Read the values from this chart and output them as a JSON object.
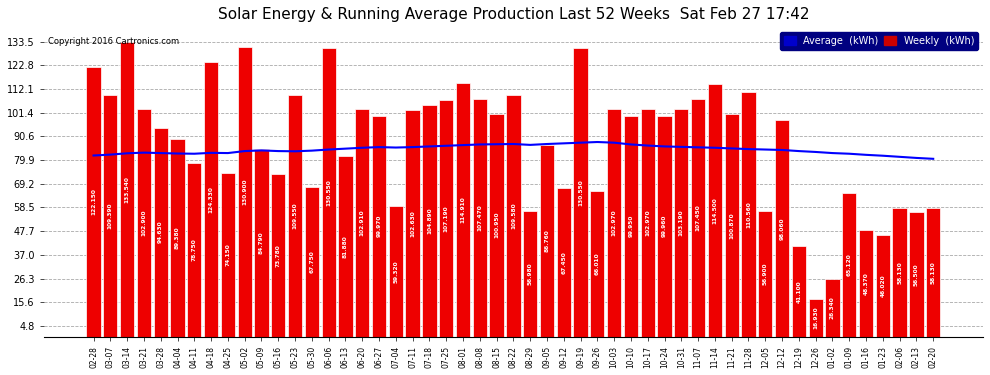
{
  "title": "Solar Energy & Running Average Production Last 52 Weeks  Sat Feb 27 17:42",
  "copyright": "Copyright 2016 Cartronics.com",
  "bar_color": "#ee0000",
  "bar_edge_color": "#ffffff",
  "avg_line_color": "#0000ff",
  "background_color": "#ffffff",
  "plot_bg_color": "#ffffff",
  "grid_color": "#aaaaaa",
  "yticks": [
    4.8,
    15.6,
    26.3,
    37.0,
    47.7,
    58.5,
    69.2,
    79.9,
    90.6,
    101.4,
    112.1,
    122.8,
    133.5
  ],
  "legend_avg_color": "#0000cc",
  "legend_weekly_color": "#cc0000",
  "categories": [
    "02-28",
    "03-07",
    "03-14",
    "03-21",
    "03-28",
    "04-04",
    "04-11",
    "04-18",
    "04-25",
    "05-02",
    "05-09",
    "05-16",
    "05-23",
    "05-30",
    "06-06",
    "06-13",
    "06-20",
    "06-27",
    "07-04",
    "07-11",
    "07-18",
    "07-25",
    "08-01",
    "08-08",
    "08-15",
    "08-22",
    "08-29",
    "09-05",
    "09-12",
    "09-19",
    "09-26",
    "10-03",
    "10-10",
    "10-17",
    "10-24",
    "10-31",
    "11-07",
    "11-14",
    "11-21",
    "11-28",
    "12-05",
    "12-12",
    "12-19",
    "12-26",
    "01-02",
    "01-09",
    "01-16",
    "01-23",
    "02-06",
    "02-13",
    "02-20"
  ],
  "weekly_values": [
    122.15,
    109.39,
    133.54,
    102.9,
    94.63,
    89.38,
    78.75,
    124.33,
    74.15,
    130.9,
    84.79,
    73.78,
    109.55,
    67.75,
    130.55,
    81.88,
    102.91,
    99.97,
    59.32,
    102.63,
    104.89,
    107.19,
    114.91,
    107.47,
    100.95,
    109.58,
    56.98,
    86.76,
    67.45,
    130.55,
    66.01,
    102.97,
    99.95,
    102.97,
    99.96,
    103.19,
    107.45,
    114.5,
    100.87,
    110.56,
    56.9,
    98.06,
    41.1,
    16.93,
    26.34,
    65.12,
    48.37,
    46.02,
    58.13,
    56.5,
    58.13
  ],
  "avg_values": [
    82.0,
    82.4,
    83.0,
    83.3,
    83.1,
    82.9,
    82.8,
    83.2,
    83.1,
    84.0,
    84.3,
    84.0,
    83.9,
    84.2,
    84.7,
    85.1,
    85.5,
    85.8,
    85.6,
    85.8,
    86.1,
    86.4,
    86.7,
    87.0,
    87.1,
    87.2,
    86.8,
    87.2,
    87.5,
    87.8,
    88.1,
    87.8,
    87.0,
    86.5,
    86.1,
    85.9,
    85.7,
    85.5,
    85.2,
    84.9,
    84.7,
    84.5,
    84.0,
    83.6,
    83.1,
    82.8,
    82.3,
    81.9,
    81.4,
    80.9,
    80.5
  ]
}
